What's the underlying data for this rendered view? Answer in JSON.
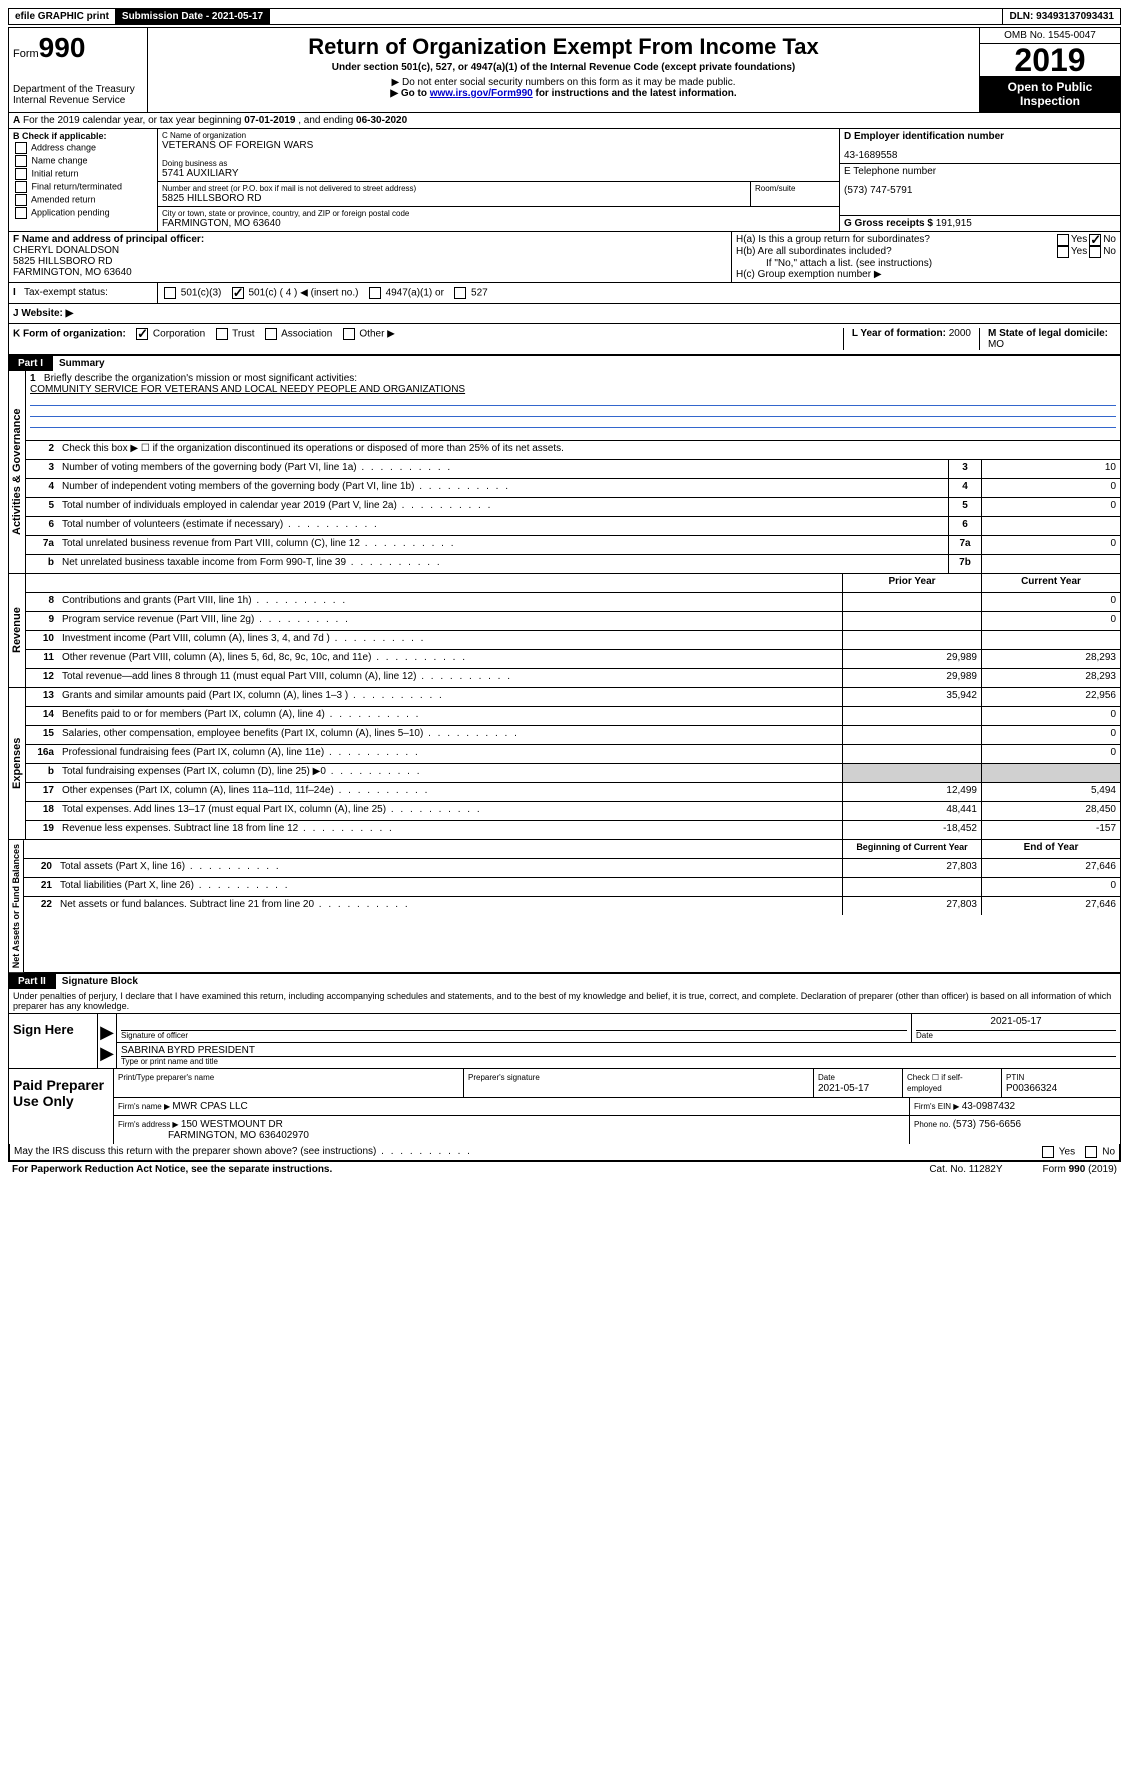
{
  "top_bar": {
    "efile": "efile GRAPHIC print",
    "submission_label": "Submission Date - 2021-05-17",
    "dln": "DLN: 93493137093431"
  },
  "header": {
    "form_prefix": "Form",
    "form_number": "990",
    "dept": "Department of the Treasury\nInternal Revenue Service",
    "title": "Return of Organization Exempt From Income Tax",
    "subtitle": "Under section 501(c), 527, or 4947(a)(1) of the Internal Revenue Code (except private foundations)",
    "note1": "▶ Do not enter social security numbers on this form as it may be made public.",
    "note2_pre": "▶ Go to ",
    "note2_link": "www.irs.gov/Form990",
    "note2_post": " for instructions and the latest information.",
    "omb": "OMB No. 1545-0047",
    "year": "2019",
    "inspection": "Open to Public Inspection"
  },
  "section_a": {
    "text_pre": "For the 2019 calendar year, or tax year beginning ",
    "begin": "07-01-2019",
    "mid": " , and ending ",
    "end": "06-30-2020"
  },
  "col_b": {
    "label": "B Check if applicable:",
    "opts": [
      "Address change",
      "Name change",
      "Initial return",
      "Final return/terminated",
      "Amended return",
      "Application pending"
    ]
  },
  "col_c": {
    "name_label": "C Name of organization",
    "name": "VETERANS OF FOREIGN WARS",
    "dba_label": "Doing business as",
    "dba": "5741 AUXILIARY",
    "street_label": "Number and street (or P.O. box if mail is not delivered to street address)",
    "room_label": "Room/suite",
    "street": "5825 HILLSBORO RD",
    "city_label": "City or town, state or province, country, and ZIP or foreign postal code",
    "city": "FARMINGTON, MO  63640"
  },
  "col_d": {
    "ein_label": "D Employer identification number",
    "ein": "43-1689558",
    "phone_label": "E Telephone number",
    "phone": "(573) 747-5791",
    "gross_label": "G Gross receipts $ ",
    "gross": "191,915"
  },
  "row_f": {
    "label": "F  Name and address of principal officer:",
    "name": "CHERYL DONALDSON",
    "addr1": "5825 HILLSBORO RD",
    "addr2": "FARMINGTON, MO  63640"
  },
  "row_h": {
    "ha": "H(a)  Is this a group return for subordinates?",
    "hb": "H(b)  Are all subordinates included?",
    "hb_note": "If \"No,\" attach a list. (see instructions)",
    "hc": "H(c)  Group exemption number ▶"
  },
  "row_i": {
    "label": "Tax-exempt status:",
    "opts": [
      "501(c)(3)",
      "501(c) ( 4 ) ◀ (insert no.)",
      "4947(a)(1) or",
      "527"
    ]
  },
  "row_j": {
    "label": "J   Website: ▶"
  },
  "row_k": {
    "label": "K Form of organization:",
    "opts": [
      "Corporation",
      "Trust",
      "Association",
      "Other ▶"
    ],
    "l_label": "L Year of formation: ",
    "l_val": "2000",
    "m_label": "M State of legal domicile: ",
    "m_val": "MO"
  },
  "part1": {
    "tab": "Part I",
    "title": "Summary"
  },
  "governance": {
    "vert": "Activities & Governance",
    "line1_label": "Briefly describe the organization's mission or most significant activities:",
    "line1_text": "COMMUNITY SERVICE FOR VETERANS AND LOCAL NEEDY PEOPLE AND ORGANIZATIONS",
    "line2": "Check this box ▶ ☐  if the organization discontinued its operations or disposed of more than 25% of its net assets.",
    "rows": [
      {
        "n": "3",
        "label": "Number of voting members of the governing body (Part VI, line 1a)",
        "box": "3",
        "val": "10"
      },
      {
        "n": "4",
        "label": "Number of independent voting members of the governing body (Part VI, line 1b)",
        "box": "4",
        "val": "0"
      },
      {
        "n": "5",
        "label": "Total number of individuals employed in calendar year 2019 (Part V, line 2a)",
        "box": "5",
        "val": "0"
      },
      {
        "n": "6",
        "label": "Total number of volunteers (estimate if necessary)",
        "box": "6",
        "val": ""
      },
      {
        "n": "7a",
        "label": "Total unrelated business revenue from Part VIII, column (C), line 12",
        "box": "7a",
        "val": "0"
      },
      {
        "n": "b",
        "label": "Net unrelated business taxable income from Form 990-T, line 39",
        "box": "7b",
        "val": ""
      }
    ]
  },
  "two_col_header": {
    "prior": "Prior Year",
    "current": "Current Year"
  },
  "revenue": {
    "vert": "Revenue",
    "rows": [
      {
        "n": "8",
        "label": "Contributions and grants (Part VIII, line 1h)",
        "p": "",
        "c": "0"
      },
      {
        "n": "9",
        "label": "Program service revenue (Part VIII, line 2g)",
        "p": "",
        "c": "0"
      },
      {
        "n": "10",
        "label": "Investment income (Part VIII, column (A), lines 3, 4, and 7d )",
        "p": "",
        "c": ""
      },
      {
        "n": "11",
        "label": "Other revenue (Part VIII, column (A), lines 5, 6d, 8c, 9c, 10c, and 11e)",
        "p": "29,989",
        "c": "28,293"
      },
      {
        "n": "12",
        "label": "Total revenue—add lines 8 through 11 (must equal Part VIII, column (A), line 12)",
        "p": "29,989",
        "c": "28,293"
      }
    ]
  },
  "expenses": {
    "vert": "Expenses",
    "rows": [
      {
        "n": "13",
        "label": "Grants and similar amounts paid (Part IX, column (A), lines 1–3 )",
        "p": "35,942",
        "c": "22,956"
      },
      {
        "n": "14",
        "label": "Benefits paid to or for members (Part IX, column (A), line 4)",
        "p": "",
        "c": "0"
      },
      {
        "n": "15",
        "label": "Salaries, other compensation, employee benefits (Part IX, column (A), lines 5–10)",
        "p": "",
        "c": "0"
      },
      {
        "n": "16a",
        "label": "Professional fundraising fees (Part IX, column (A), line 11e)",
        "p": "",
        "c": "0"
      },
      {
        "n": "b",
        "label": "Total fundraising expenses (Part IX, column (D), line 25) ▶0",
        "p": "GRAY",
        "c": "GRAY"
      },
      {
        "n": "17",
        "label": "Other expenses (Part IX, column (A), lines 11a–11d, 11f–24e)",
        "p": "12,499",
        "c": "5,494"
      },
      {
        "n": "18",
        "label": "Total expenses. Add lines 13–17 (must equal Part IX, column (A), line 25)",
        "p": "48,441",
        "c": "28,450"
      },
      {
        "n": "19",
        "label": "Revenue less expenses. Subtract line 18 from line 12",
        "p": "-18,452",
        "c": "-157"
      }
    ]
  },
  "netassets": {
    "vert": "Net Assets or Fund Balances",
    "header_p": "Beginning of Current Year",
    "header_c": "End of Year",
    "rows": [
      {
        "n": "20",
        "label": "Total assets (Part X, line 16)",
        "p": "27,803",
        "c": "27,646"
      },
      {
        "n": "21",
        "label": "Total liabilities (Part X, line 26)",
        "p": "",
        "c": "0"
      },
      {
        "n": "22",
        "label": "Net assets or fund balances. Subtract line 21 from line 20",
        "p": "27,803",
        "c": "27,646"
      }
    ]
  },
  "part2": {
    "tab": "Part II",
    "title": "Signature Block"
  },
  "sig": {
    "penalty": "Under penalties of perjury, I declare that I have examined this return, including accompanying schedules and statements, and to the best of my knowledge and belief, it is true, correct, and complete. Declaration of preparer (other than officer) is based on all information of which preparer has any knowledge.",
    "sign_here": "Sign Here",
    "sig_officer": "Signature of officer",
    "date": "2021-05-17",
    "date_label": "Date",
    "name_title": "SABRINA BYRD  PRESIDENT",
    "name_title_label": "Type or print name and title"
  },
  "paid": {
    "label": "Paid Preparer Use Only",
    "h1": "Print/Type preparer's name",
    "h2": "Preparer's signature",
    "h3": "Date",
    "h3v": "2021-05-17",
    "h4": "Check ☐ if self-employed",
    "h5": "PTIN",
    "h5v": "P00366324",
    "firm_name_label": "Firm's name    ▶ ",
    "firm_name": "MWR CPAS LLC",
    "firm_ein_label": "Firm's EIN ▶ ",
    "firm_ein": "43-0987432",
    "firm_addr_label": "Firm's address ▶ ",
    "firm_addr": "150 WESTMOUNT DR",
    "firm_addr2": "FARMINGTON, MO  636402970",
    "phone_label": "Phone no. ",
    "phone": "(573) 756-6656"
  },
  "footer": {
    "discuss": "May the IRS discuss this return with the preparer shown above? (see instructions)",
    "paperwork": "For Paperwork Reduction Act Notice, see the separate instructions.",
    "cat": "Cat. No. 11282Y",
    "form": "Form 990 (2019)"
  }
}
